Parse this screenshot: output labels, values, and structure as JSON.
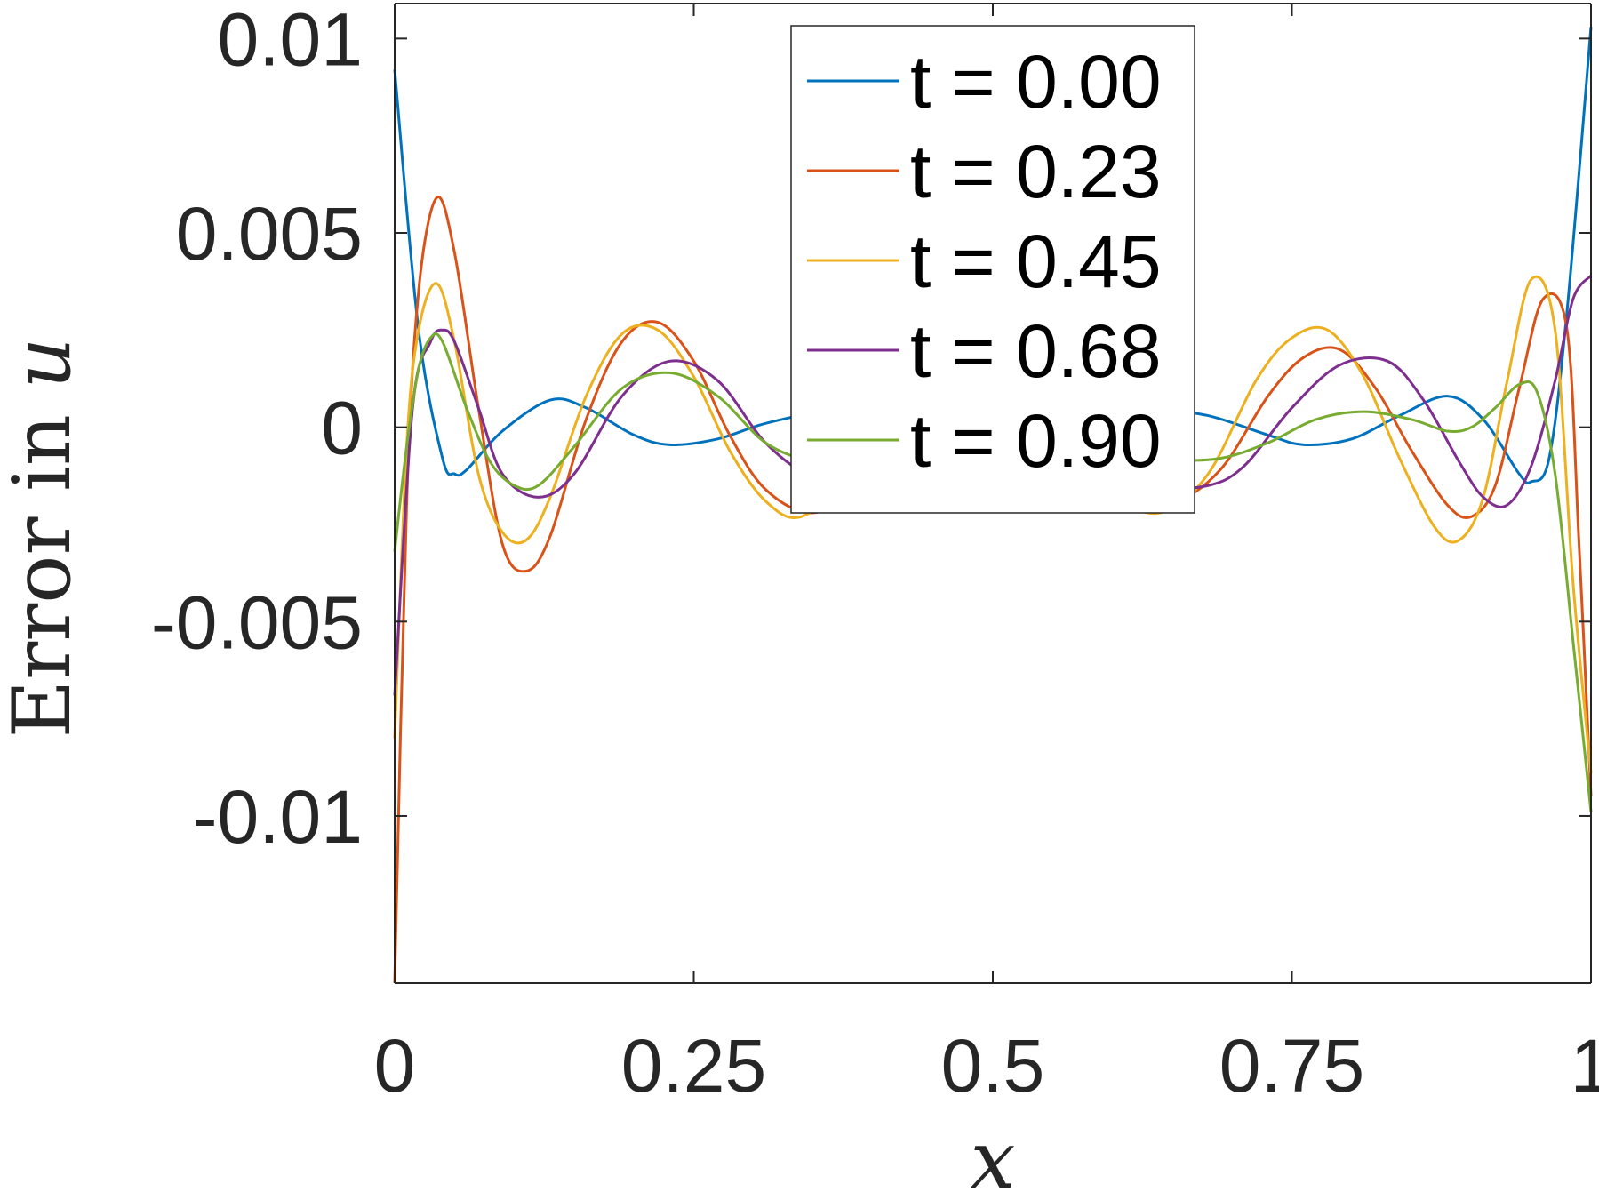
{
  "chart_data": {
    "type": "line",
    "title": "",
    "xlabel": "x",
    "ylabel_text": "Error in ",
    "ylabel_var": "u",
    "xlim": [
      0,
      1
    ],
    "ylim": [
      -0.0143,
      0.0109
    ],
    "xticks": [
      0,
      0.25,
      0.5,
      0.75,
      1
    ],
    "xtick_labels": [
      "0",
      "0.25",
      "0.5",
      "0.75",
      "1"
    ],
    "yticks": [
      0.01,
      0.005,
      0,
      -0.005,
      -0.01
    ],
    "ytick_labels": [
      "0.01",
      "0.005",
      "0",
      "-0.005",
      "-0.01"
    ],
    "grid": false,
    "legend_position": "top-center",
    "series": [
      {
        "name": "t = 0.00",
        "color": "#0072BD",
        "x": [
          0,
          0.02,
          0.04,
          0.05,
          0.06,
          0.09,
          0.13,
          0.16,
          0.2,
          0.23,
          0.27,
          0.31,
          0.36,
          0.4,
          0.45,
          0.5,
          0.55,
          0.6,
          0.64,
          0.68,
          0.73,
          0.76,
          0.8,
          0.84,
          0.88,
          0.91,
          0.94,
          0.95,
          0.965,
          0.98,
          1.0
        ],
        "y": [
          0.0092,
          0.0025,
          -0.0008,
          -0.0012,
          -0.0011,
          -0.0001,
          0.0007,
          0.0005,
          -0.0002,
          -0.00045,
          -0.0003,
          0.0001,
          0.0004,
          0.0003,
          -0.0001,
          -0.00035,
          -0.0002,
          0.0002,
          0.0004,
          0.0003,
          -0.0002,
          -0.00045,
          -0.0003,
          0.0003,
          0.0008,
          0.0002,
          -0.0012,
          -0.0014,
          -0.0008,
          0.003,
          0.0103
        ]
      },
      {
        "name": "t = 0.23",
        "color": "#D95319",
        "x": [
          0,
          0.01,
          0.02,
          0.035,
          0.05,
          0.07,
          0.09,
          0.11,
          0.13,
          0.16,
          0.19,
          0.22,
          0.25,
          0.28,
          0.31,
          0.35,
          0.39,
          0.43,
          0.47,
          0.5,
          0.53,
          0.57,
          0.61,
          0.65,
          0.69,
          0.73,
          0.76,
          0.79,
          0.82,
          0.85,
          0.88,
          0.9,
          0.92,
          0.94,
          0.96,
          0.98,
          0.99,
          1.0
        ],
        "y": [
          -0.0143,
          -0.002,
          0.0035,
          0.0059,
          0.0045,
          0.0005,
          -0.003,
          -0.0037,
          -0.0028,
          0.0002,
          0.0022,
          0.0027,
          0.0017,
          -0.0002,
          -0.0016,
          -0.0022,
          -0.0014,
          0.0005,
          0.0018,
          0.002,
          0.0015,
          0.0001,
          -0.0014,
          -0.0019,
          -0.0011,
          0.0008,
          0.0018,
          0.002,
          0.001,
          -0.0006,
          -0.002,
          -0.0023,
          -0.0015,
          0.001,
          0.0033,
          0.0025,
          -0.003,
          -0.0095
        ]
      },
      {
        "name": "t = 0.45",
        "color": "#EDB120",
        "x": [
          0,
          0.01,
          0.02,
          0.035,
          0.05,
          0.07,
          0.09,
          0.11,
          0.13,
          0.16,
          0.19,
          0.22,
          0.25,
          0.28,
          0.31,
          0.34,
          0.38,
          0.42,
          0.46,
          0.49,
          0.52,
          0.56,
          0.6,
          0.64,
          0.68,
          0.72,
          0.75,
          0.78,
          0.81,
          0.84,
          0.87,
          0.89,
          0.91,
          0.93,
          0.95,
          0.97,
          0.985,
          1.0
        ],
        "y": [
          -0.008,
          -0.0005,
          0.0025,
          0.0037,
          0.0022,
          -0.0012,
          -0.0027,
          -0.0029,
          -0.0018,
          0.0008,
          0.0024,
          0.0025,
          0.0013,
          -0.0006,
          -0.0019,
          -0.0023,
          -0.0012,
          0.0008,
          0.002,
          0.0022,
          0.0017,
          0.0,
          -0.0017,
          -0.0022,
          -0.0012,
          0.0012,
          0.0023,
          0.0025,
          0.0013,
          -0.0008,
          -0.0026,
          -0.0029,
          -0.0018,
          0.0012,
          0.0038,
          0.0025,
          -0.004,
          -0.0089
        ]
      },
      {
        "name": "t = 0.68",
        "color": "#7E2F8E",
        "x": [
          0,
          0.015,
          0.03,
          0.04,
          0.05,
          0.07,
          0.09,
          0.12,
          0.15,
          0.19,
          0.23,
          0.27,
          0.31,
          0.35,
          0.39,
          0.43,
          0.47,
          0.5,
          0.53,
          0.56,
          0.6,
          0.64,
          0.68,
          0.71,
          0.75,
          0.79,
          0.83,
          0.86,
          0.89,
          0.91,
          0.93,
          0.95,
          0.97,
          0.985,
          1.0
        ],
        "y": [
          -0.0069,
          0.0005,
          0.0022,
          0.0025,
          0.0022,
          0.0005,
          -0.0012,
          -0.0018,
          -0.0012,
          0.0008,
          0.0017,
          0.0012,
          -0.0004,
          -0.0013,
          -0.0015,
          -0.0005,
          0.001,
          0.0015,
          0.0014,
          0.0005,
          -0.0008,
          -0.0015,
          -0.0015,
          -0.001,
          0.0005,
          0.0016,
          0.0017,
          0.0007,
          -0.0009,
          -0.0018,
          -0.002,
          -0.001,
          0.0012,
          0.0033,
          0.0039
        ]
      },
      {
        "name": "t = 0.90",
        "color": "#77AC30",
        "x": [
          0,
          0.01,
          0.02,
          0.03,
          0.04,
          0.06,
          0.08,
          0.1,
          0.12,
          0.15,
          0.19,
          0.23,
          0.27,
          0.31,
          0.35,
          0.39,
          0.43,
          0.47,
          0.51,
          0.54,
          0.57,
          0.61,
          0.65,
          0.69,
          0.73,
          0.77,
          0.81,
          0.85,
          0.88,
          0.9,
          0.92,
          0.94,
          0.955,
          0.97,
          0.985,
          1.0
        ],
        "y": [
          -0.0032,
          -0.0005,
          0.0015,
          0.0023,
          0.0022,
          0.0005,
          -0.0009,
          -0.0015,
          -0.0015,
          -0.0005,
          0.001,
          0.0014,
          0.0008,
          -0.0004,
          -0.0009,
          -0.0011,
          -0.0006,
          0.0004,
          0.0011,
          0.001,
          0.0004,
          -0.0004,
          -0.0008,
          -0.0008,
          -0.0004,
          0.0002,
          0.0004,
          0.0002,
          -0.0001,
          0.0,
          0.0005,
          0.0011,
          0.0009,
          -0.0012,
          -0.0055,
          -0.0099
        ]
      }
    ]
  }
}
